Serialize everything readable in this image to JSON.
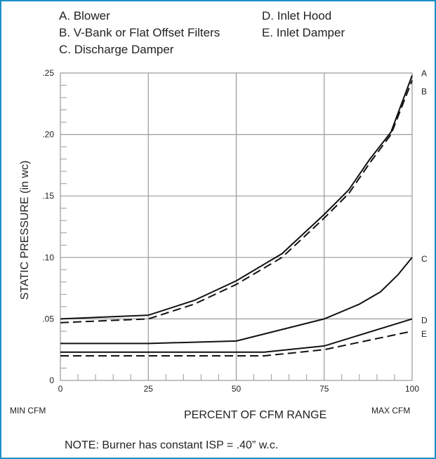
{
  "chart_data": {
    "type": "line",
    "legend": [
      {
        "letter": "A",
        "text": "A. Blower"
      },
      {
        "letter": "B",
        "text": "B. V-Bank or Flat Offset Filters"
      },
      {
        "letter": "C",
        "text": "C. Discharge Damper"
      },
      {
        "letter": "D",
        "text": "D. Inlet Hood"
      },
      {
        "letter": "E",
        "text": "E. Inlet Damper"
      }
    ],
    "xlabel": "PERCENT OF CFM RANGE",
    "ylabel": "STATIC PRESSURE (in wc)",
    "x_min_label": "MIN CFM",
    "x_max_label": "MAX CFM",
    "xlim": [
      0,
      100
    ],
    "ylim": [
      0,
      0.25
    ],
    "x_ticks": [
      {
        "value": 0,
        "label": "0"
      },
      {
        "value": 25,
        "label": "25"
      },
      {
        "value": 50,
        "label": "50"
      },
      {
        "value": 75,
        "label": "75"
      },
      {
        "value": 100,
        "label": "100"
      }
    ],
    "y_ticks": [
      {
        "value": 0,
        "label": "0"
      },
      {
        "value": 0.05,
        "label": ".05"
      },
      {
        "value": 0.1,
        "label": ".10"
      },
      {
        "value": 0.15,
        "label": ".15"
      },
      {
        "value": 0.2,
        "label": ".20"
      },
      {
        "value": 0.25,
        "label": ".25"
      }
    ],
    "grid": true,
    "series": [
      {
        "name": "A",
        "style": "solid",
        "x": [
          0,
          25,
          38,
          50,
          63,
          75,
          82,
          88,
          94,
          100
        ],
        "y": [
          0.05,
          0.053,
          0.065,
          0.081,
          0.103,
          0.135,
          0.155,
          0.18,
          0.202,
          0.248
        ]
      },
      {
        "name": "B",
        "style": "dashed",
        "x": [
          0,
          25,
          38,
          50,
          63,
          75,
          82,
          88,
          94,
          100
        ],
        "y": [
          0.047,
          0.05,
          0.062,
          0.078,
          0.1,
          0.132,
          0.152,
          0.177,
          0.2,
          0.244
        ]
      },
      {
        "name": "C",
        "style": "solid",
        "x": [
          0,
          25,
          50,
          75,
          85,
          91,
          96,
          100
        ],
        "y": [
          0.03,
          0.03,
          0.032,
          0.05,
          0.062,
          0.072,
          0.086,
          0.1
        ]
      },
      {
        "name": "D",
        "style": "solid",
        "x": [
          0,
          25,
          58,
          75,
          100
        ],
        "y": [
          0.023,
          0.023,
          0.023,
          0.028,
          0.05
        ]
      },
      {
        "name": "E",
        "style": "dashed",
        "x": [
          0,
          25,
          58,
          75,
          100
        ],
        "y": [
          0.02,
          0.02,
          0.02,
          0.025,
          0.04
        ]
      }
    ],
    "note": "NOTE: Burner has constant ISP = .40” w.c."
  }
}
